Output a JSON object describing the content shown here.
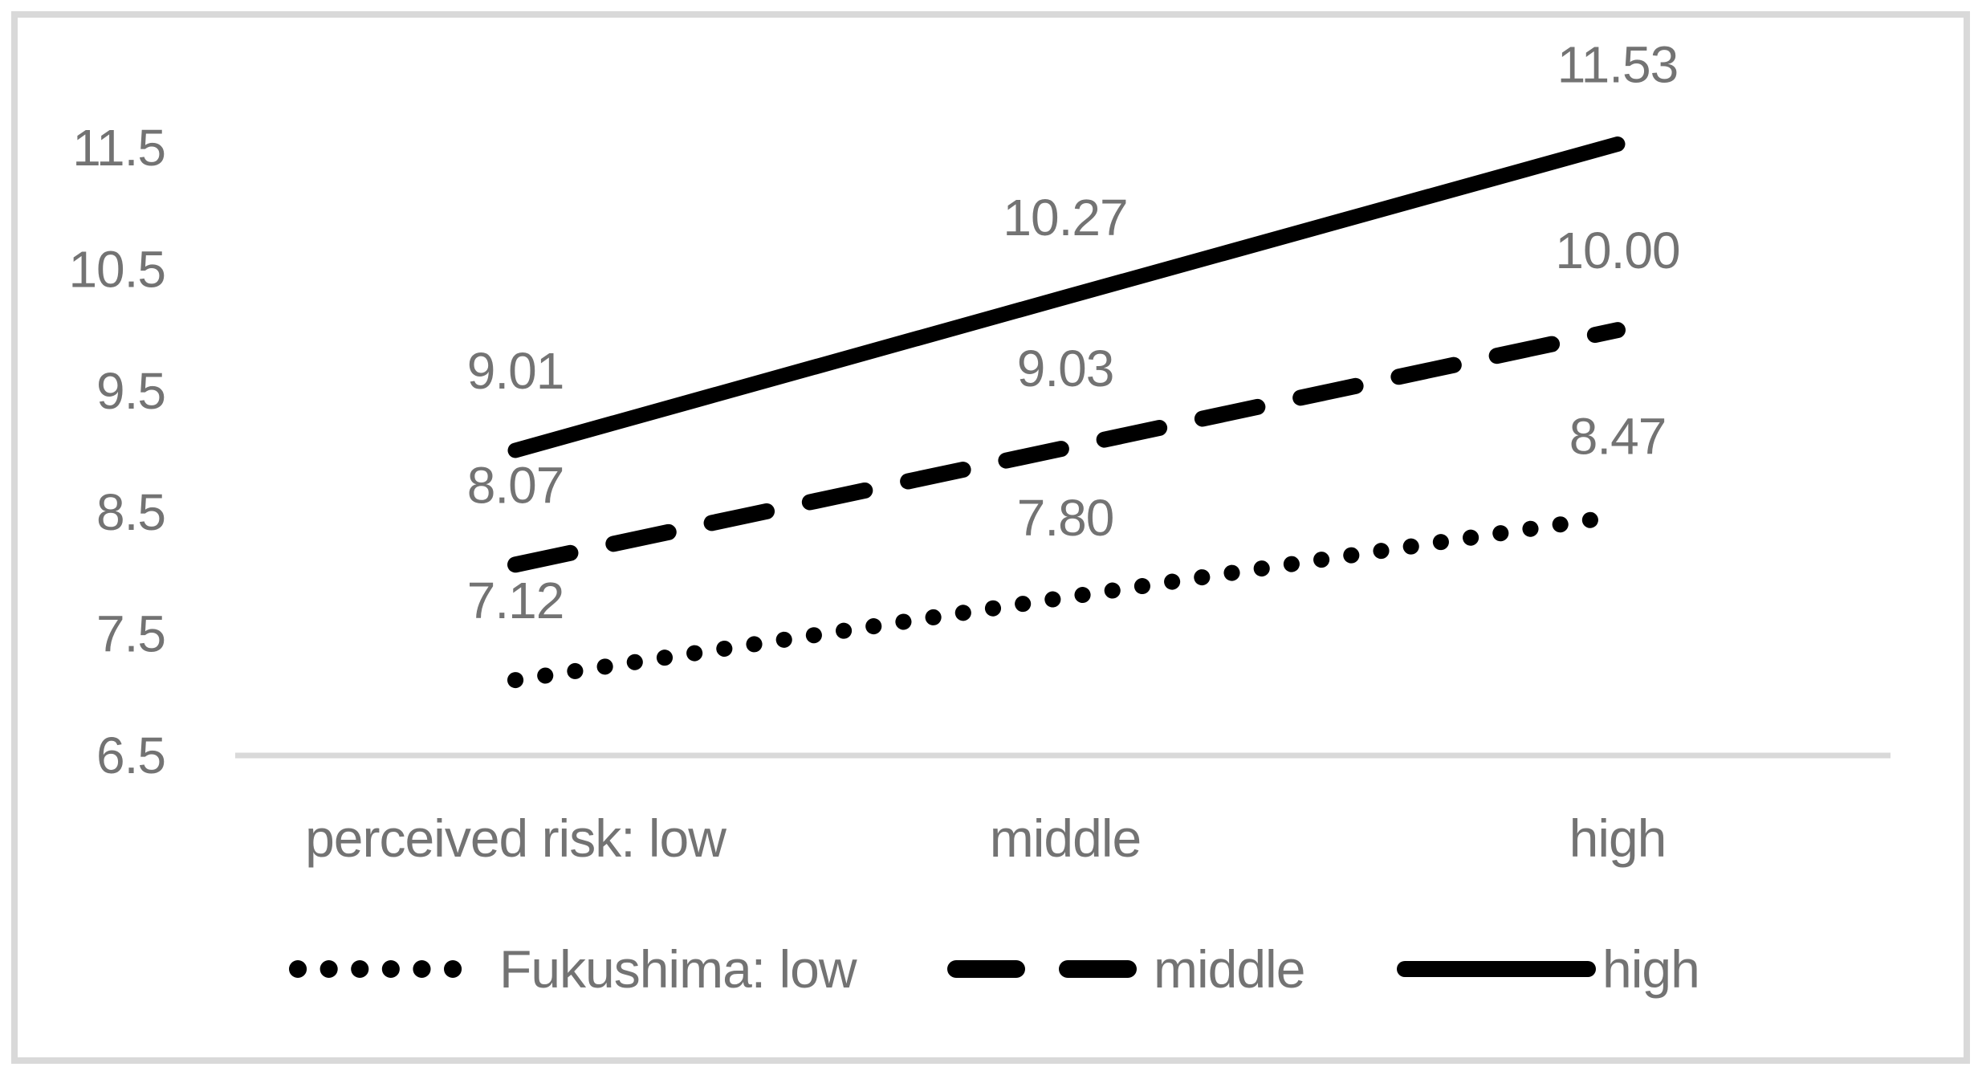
{
  "chart_data": {
    "type": "line",
    "title": "",
    "xlabel": "",
    "ylabel": "",
    "categories": [
      "perceived risk: low",
      "middle",
      "high"
    ],
    "series": [
      {
        "name": "Fukushima: low",
        "style": "dotted",
        "values": [
          7.12,
          7.8,
          8.47
        ],
        "labels": [
          "7.12",
          "7.80",
          "8.47"
        ]
      },
      {
        "name": "middle",
        "style": "dashed",
        "values": [
          8.07,
          9.03,
          10.0
        ],
        "labels": [
          "8.07",
          "9.03",
          "10.00"
        ]
      },
      {
        "name": "high",
        "style": "solid",
        "values": [
          9.01,
          10.27,
          11.53
        ],
        "labels": [
          "9.01",
          "10.27",
          "11.53"
        ]
      }
    ],
    "yticks": [
      {
        "value": 6.5,
        "label": "6.5"
      },
      {
        "value": 7.5,
        "label": "7.5"
      },
      {
        "value": 8.5,
        "label": "8.5"
      },
      {
        "value": 9.5,
        "label": "9.5"
      },
      {
        "value": 10.5,
        "label": "10.5"
      },
      {
        "value": 11.5,
        "label": "11.5"
      }
    ],
    "ylim": [
      6.5,
      11.5
    ],
    "grid": false,
    "legend_position": "bottom",
    "colors": {
      "line": "#000000",
      "text": "#737373",
      "frame": "#d9d9d9",
      "axis": "#d9d9d9",
      "background": "#ffffff"
    }
  }
}
